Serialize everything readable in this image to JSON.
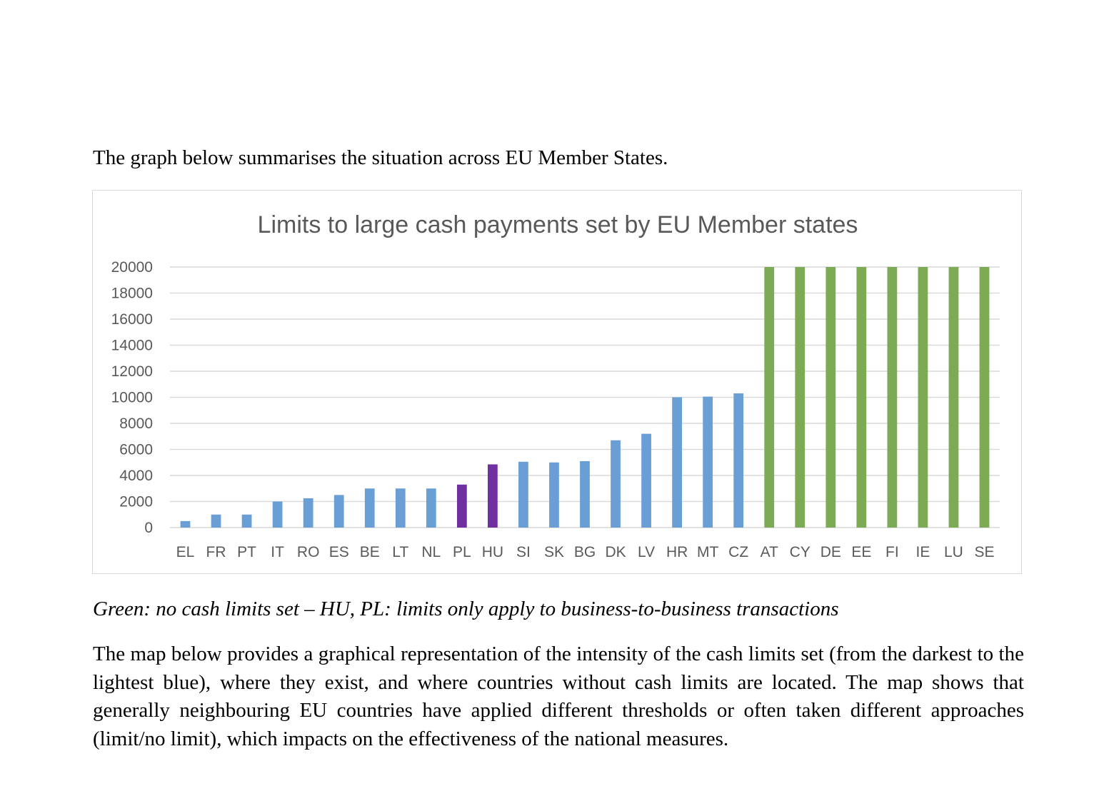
{
  "intro_text": "The graph below summarises the situation across EU Member States.",
  "caption_text": "Green: no cash limits set – HU, PL: limits only apply to business-to-business transactions",
  "body_text": "The map below provides a graphical representation of the intensity of the cash limits set (from the darkest to the lightest blue), where they exist, and where countries without cash limits are located. The map shows that generally neighbouring EU countries have applied different thresholds or often taken different approaches (limit/no limit), which impacts on the effectiveness of the national measures.",
  "chart_data": {
    "type": "bar",
    "title": "Limits to large cash payments set by EU Member states",
    "xlabel": "",
    "ylabel": "",
    "ylim": [
      0,
      20000
    ],
    "yticks": [
      0,
      2000,
      4000,
      6000,
      8000,
      10000,
      12000,
      14000,
      16000,
      18000,
      20000
    ],
    "grid": true,
    "legend": "none",
    "colors": {
      "limit": "#6a9fd6",
      "b2b_only": "#7030a0",
      "no_limit": "#7dab55"
    },
    "categories": [
      "EL",
      "FR",
      "PT",
      "IT",
      "RO",
      "ES",
      "BE",
      "LT",
      "NL",
      "PL",
      "HU",
      "SI",
      "SK",
      "BG",
      "DK",
      "LV",
      "HR",
      "MT",
      "CZ",
      "AT",
      "CY",
      "DE",
      "EE",
      "FI",
      "IE",
      "LU",
      "SE"
    ],
    "values": [
      500,
      1000,
      1000,
      2000,
      2250,
      2500,
      3000,
      3000,
      3000,
      3300,
      4850,
      5050,
      5000,
      5100,
      6700,
      7200,
      10000,
      10050,
      10300,
      20000,
      20000,
      20000,
      20000,
      20000,
      20000,
      20000,
      20000
    ],
    "bar_groups": [
      "limit",
      "limit",
      "limit",
      "limit",
      "limit",
      "limit",
      "limit",
      "limit",
      "limit",
      "b2b_only",
      "b2b_only",
      "limit",
      "limit",
      "limit",
      "limit",
      "limit",
      "limit",
      "limit",
      "limit",
      "no_limit",
      "no_limit",
      "no_limit",
      "no_limit",
      "no_limit",
      "no_limit",
      "no_limit",
      "no_limit"
    ]
  }
}
